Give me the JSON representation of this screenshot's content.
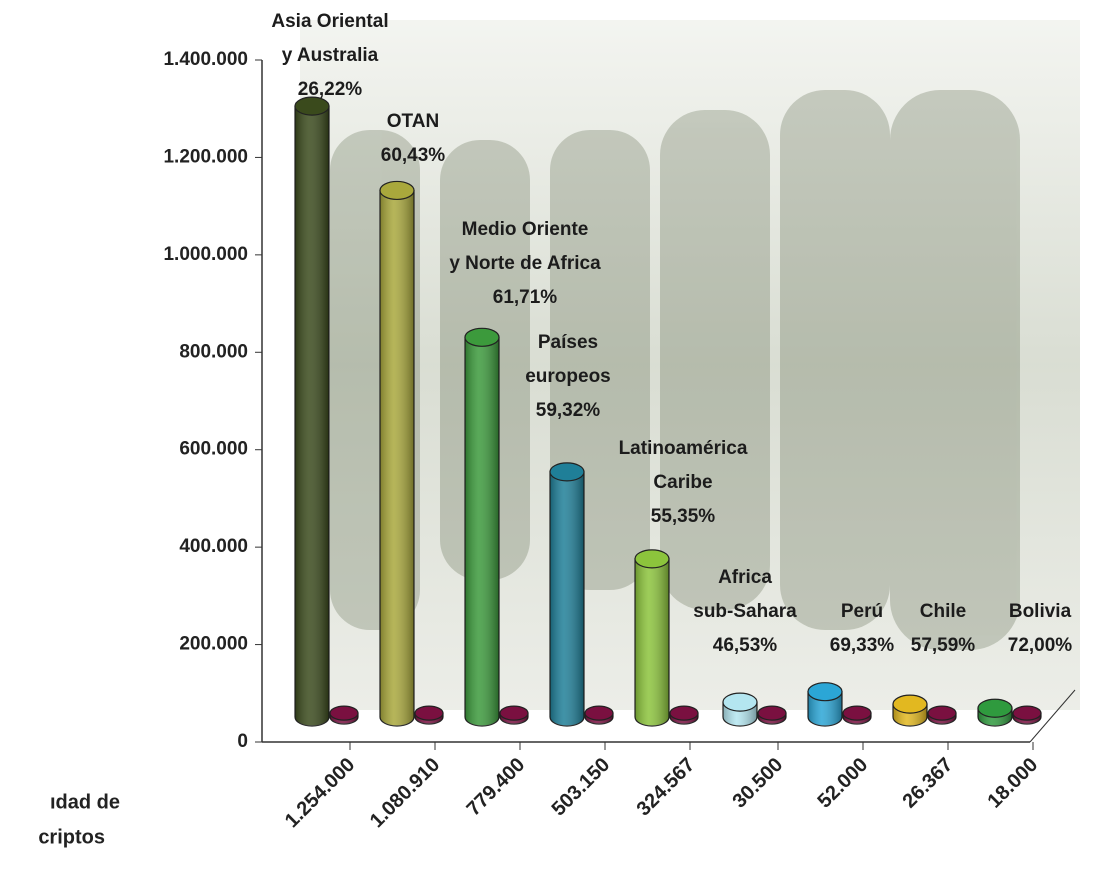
{
  "chart_data": {
    "type": "bar",
    "categories": [
      "1.254.000",
      "1.080.910",
      "779.400",
      "503.150",
      "324.567",
      "30.500",
      "52.000",
      "26.367",
      "18.000"
    ],
    "series": [
      {
        "colors": [
          "#3a4a1c",
          "#a9a83c",
          "#3c9a3c",
          "#1f7f98",
          "#8cc43c",
          "#b4e6f0",
          "#2ba6d6",
          "#e2b820",
          "#2f9a3e"
        ],
        "values": [
          1254000,
          1080910,
          779400,
          503150,
          324567,
          30500,
          52000,
          26367,
          18000
        ]
      },
      {
        "color": "#7a1040",
        "values": [
          8000,
          8000,
          8000,
          8000,
          8000,
          8000,
          8000,
          8000,
          8000
        ]
      }
    ],
    "annotations": [
      [
        "Asia Oriental",
        "y Australia",
        "26,22%"
      ],
      [
        "OTAN",
        "60,43%"
      ],
      [
        "Medio Oriente",
        "y Norte de Africa",
        "61,71%"
      ],
      [
        "Países",
        "europeos",
        "59,32%"
      ],
      [
        "Latinoamérica",
        "Caribe",
        "55,35%"
      ],
      [
        "Africa",
        "sub-Sahara",
        "46,53%"
      ],
      [
        "Perú",
        "69,33%"
      ],
      [
        "Chile",
        "57,59%"
      ],
      [
        "Bolivia",
        "72,00%"
      ]
    ],
    "ylabel": [
      "ıdad de",
      "criptos"
    ],
    "ylim": [
      0,
      1400000
    ],
    "yticks": [
      {
        "value": 0,
        "label": "0"
      },
      {
        "value": 200000,
        "label": "200.000"
      },
      {
        "value": 400000,
        "label": "400.000"
      },
      {
        "value": 600000,
        "label": "600.000"
      },
      {
        "value": 800000,
        "label": "800.000"
      },
      {
        "value": 1000000,
        "label": "1.000.000"
      },
      {
        "value": 1200000,
        "label": "1.200.000"
      },
      {
        "value": 1400000,
        "label": "1.400.000"
      }
    ]
  }
}
